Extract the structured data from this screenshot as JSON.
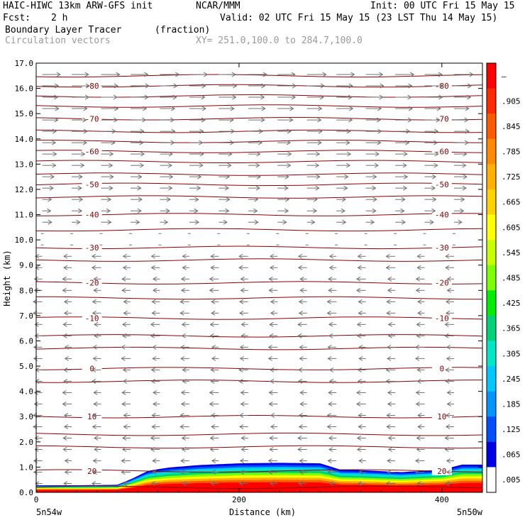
{
  "header": {
    "model": "HAIC-HIWC 13km ARW-GFS init",
    "org": "NCAR/MMM",
    "init": "Init: 00 UTC Fri 15 May 15",
    "fcst_label": "Fcst:",
    "fcst_value": "2 h",
    "valid": "Valid: 02 UTC Fri 15 May 15 (23 LST Thu 14 May 15)",
    "field": "Boundary Layer Tracer",
    "field_units": "(fraction)",
    "vectors": "Circulation vectors",
    "xy": "XY= 251.0,100.0 to 284.7,100.0"
  },
  "chart_data": {
    "type": "heatmap",
    "xlabel": "Distance (km)",
    "ylabel": "Height (km)",
    "xlim": [
      0,
      440
    ],
    "ylim": [
      0,
      17
    ],
    "x_ticks": [
      0,
      200,
      400
    ],
    "x_tick_labels": [
      "0",
      "200",
      "400"
    ],
    "y_ticks": [
      0.0,
      1.0,
      2.0,
      3.0,
      4.0,
      5.0,
      6.0,
      7.0,
      8.0,
      9.0,
      10.0,
      11.0,
      12.0,
      13.0,
      14.0,
      15.0,
      16.0,
      17.0
    ],
    "y_tick_labels": [
      "0.0",
      "1.0",
      "2.0",
      "3.0",
      "4.0",
      "5.0",
      "6.0",
      "7.0",
      "8.0",
      "9.0",
      "10.0",
      "11.0",
      "12.0",
      "13.0",
      "14.0",
      "15.0",
      "16.0",
      "17.0"
    ],
    "left_endpoint": "5n54w",
    "right_endpoint": "5n50w",
    "colorbar": {
      "labels": [
        "–",
        ".905",
        ".845",
        ".785",
        ".725",
        ".665",
        ".605",
        ".545",
        ".485",
        ".425",
        ".365",
        ".305",
        ".245",
        ".185",
        ".125",
        ".065",
        ".005"
      ],
      "colors": [
        "#ff0000",
        "#ff2a00",
        "#ff5a00",
        "#ff8a00",
        "#ffb000",
        "#ffd200",
        "#ffff00",
        "#c8ff00",
        "#7dff00",
        "#00ee00",
        "#00d27a",
        "#00e6c8",
        "#00c8ff",
        "#0096ff",
        "#0050ff",
        "#0000e6",
        "#ffffff"
      ]
    },
    "tracer_top_km": {
      "x_km": [
        0,
        40,
        80,
        95,
        110,
        130,
        160,
        200,
        240,
        280,
        300,
        320,
        360,
        400,
        420,
        440
      ],
      "top": [
        0.28,
        0.28,
        0.3,
        0.55,
        0.85,
        0.98,
        1.08,
        1.15,
        1.17,
        1.15,
        0.9,
        0.88,
        0.8,
        0.9,
        1.1,
        1.1
      ]
    },
    "temperature_contours": [
      {
        "label": "-80",
        "height_km": 16.1
      },
      {
        "label": "-70",
        "height_km": 14.8
      },
      {
        "label": "-60",
        "height_km": 13.5
      },
      {
        "label": "-50",
        "height_km": 12.2
      },
      {
        "label": "-40",
        "height_km": 11.0
      },
      {
        "label": "-30",
        "height_km": 9.7
      },
      {
        "label": "-20",
        "height_km": 8.3
      },
      {
        "label": "-10",
        "height_km": 6.9
      },
      {
        "label": "0",
        "height_km": 4.9
      },
      {
        "label": "10",
        "height_km": 3.0
      },
      {
        "label": "20",
        "height_km": 0.85
      }
    ],
    "extra_contour_heights_km": [
      16.5,
      15.7,
      15.3,
      14.3,
      13.9,
      13.1,
      12.6,
      11.7,
      10.4,
      9.2,
      7.7,
      6.2,
      5.7,
      4.4,
      2.3,
      1.8,
      0.2
    ]
  }
}
